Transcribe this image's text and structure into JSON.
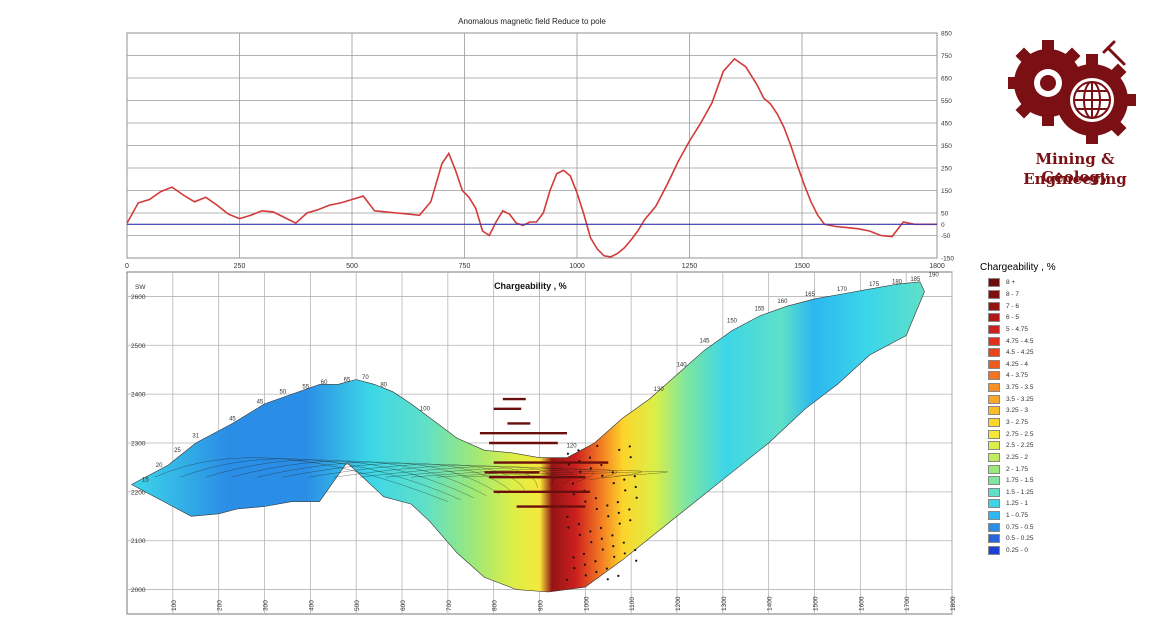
{
  "chart_data": [
    {
      "type": "line",
      "title": "Anomalous magnetic field Reduce to pole",
      "xlim": [
        0,
        1800
      ],
      "ylim": [
        -150,
        850
      ],
      "x_ticks": [
        "0",
        "250",
        "500",
        "750",
        "1000",
        "1250",
        "1500",
        "1800"
      ],
      "y_ticks": [
        "850",
        "750",
        "650",
        "550",
        "450",
        "350",
        "250",
        "150",
        "50",
        "0",
        "-50",
        "-150"
      ],
      "grid": true,
      "series": [
        {
          "color": "#d23a3a",
          "x": [
            0,
            25,
            50,
            75,
            100,
            125,
            150,
            175,
            200,
            225,
            250,
            275,
            300,
            325,
            350,
            375,
            400,
            425,
            450,
            475,
            500,
            525,
            550,
            575,
            600,
            625,
            650,
            675,
            700,
            715,
            730,
            745,
            760,
            775,
            790,
            805,
            820,
            835,
            850,
            865,
            880,
            895,
            910,
            925,
            940,
            955,
            970,
            985,
            1000,
            1015,
            1030,
            1045,
            1060,
            1075,
            1090,
            1105,
            1120,
            1135,
            1150,
            1175,
            1200,
            1225,
            1250,
            1275,
            1300,
            1325,
            1350,
            1375,
            1400,
            1415,
            1430,
            1445,
            1460,
            1475,
            1490,
            1505,
            1520,
            1535,
            1550,
            1575,
            1600,
            1625,
            1650,
            1675,
            1700,
            1725,
            1750,
            1775,
            1800
          ],
          "y": [
            5,
            95,
            110,
            145,
            165,
            130,
            100,
            120,
            85,
            45,
            25,
            40,
            60,
            55,
            30,
            5,
            50,
            65,
            85,
            95,
            110,
            125,
            60,
            55,
            50,
            45,
            40,
            100,
            270,
            315,
            240,
            150,
            120,
            70,
            -30,
            -50,
            10,
            60,
            45,
            5,
            -5,
            10,
            10,
            50,
            150,
            225,
            240,
            215,
            140,
            45,
            -60,
            -110,
            -140,
            -145,
            -130,
            -105,
            -70,
            -30,
            20,
            80,
            175,
            280,
            370,
            450,
            540,
            680,
            735,
            700,
            620,
            560,
            535,
            490,
            430,
            350,
            260,
            175,
            100,
            40,
            0,
            -10,
            -15,
            -20,
            -30,
            -50,
            -55,
            10,
            0,
            0,
            0
          ]
        },
        {
          "color": "#3b3bb0",
          "x": [
            0,
            1800
          ],
          "y": [
            0,
            0
          ]
        }
      ]
    },
    {
      "type": "heatmap",
      "title": "Chargeability , %",
      "xlim": [
        0,
        1800
      ],
      "ylim": [
        1950,
        2650
      ],
      "x_ticks": [
        "100",
        "200",
        "300",
        "400",
        "500",
        "600",
        "700",
        "800",
        "900",
        "1000",
        "1100",
        "1200",
        "1300",
        "1400",
        "1500",
        "1600",
        "1700",
        "1800"
      ],
      "y_ticks": [
        "2600",
        "2500",
        "2400",
        "2300",
        "2200",
        "2100",
        "2000"
      ],
      "corner_label": "SW",
      "station_labels": [
        "15",
        "20",
        "25",
        "31",
        "45",
        "45",
        "50",
        "55",
        "60",
        "65",
        "70",
        "80",
        "100",
        "120",
        "130",
        "140",
        "145",
        "150",
        "155",
        "160",
        "165",
        "170",
        "175",
        "180",
        "185",
        "190"
      ],
      "legend": {
        "title": "Chargeability , %",
        "items": [
          {
            "label": "8 +",
            "color": "#6b0e0e"
          },
          {
            "label": "8 - 7",
            "color": "#7e1010"
          },
          {
            "label": "7 - 6",
            "color": "#941414"
          },
          {
            "label": "6 - 5",
            "color": "#b01818"
          },
          {
            "label": "5 - 4.75",
            "color": "#cc1f1f"
          },
          {
            "label": "4.75 - 4.5",
            "color": "#e03020"
          },
          {
            "label": "4.5 - 4.25",
            "color": "#e8451f"
          },
          {
            "label": "4.25 - 4",
            "color": "#ee5a20"
          },
          {
            "label": "4 - 3.75",
            "color": "#f27522"
          },
          {
            "label": "3.75 - 3.5",
            "color": "#f69024"
          },
          {
            "label": "3.5 - 3.25",
            "color": "#f8a826"
          },
          {
            "label": "3.25 - 3",
            "color": "#fabf28"
          },
          {
            "label": "3 - 2.75",
            "color": "#fcd52b"
          },
          {
            "label": "2.75 - 2.5",
            "color": "#f5e83a"
          },
          {
            "label": "2.5 - 2.25",
            "color": "#dcee48"
          },
          {
            "label": "2.25 - 2",
            "color": "#bdec5c"
          },
          {
            "label": "2 - 1.75",
            "color": "#9ce879"
          },
          {
            "label": "1.75 - 1.5",
            "color": "#7ee6a0"
          },
          {
            "label": "1.5 - 1.25",
            "color": "#5fe0c8"
          },
          {
            "label": "1.25 - 1",
            "color": "#3cd6e8"
          },
          {
            "label": "1 - 0.75",
            "color": "#2cb8f0"
          },
          {
            "label": "0.75 - 0.5",
            "color": "#2b8ee6"
          },
          {
            "label": "0.5 - 0.25",
            "color": "#2666d8"
          },
          {
            "label": "0.25 - 0",
            "color": "#1c3fd4"
          }
        ]
      }
    }
  ],
  "logo": {
    "text_line1": "Mining & Geology",
    "text_line2": "Engineering",
    "color": "#7a1014"
  }
}
